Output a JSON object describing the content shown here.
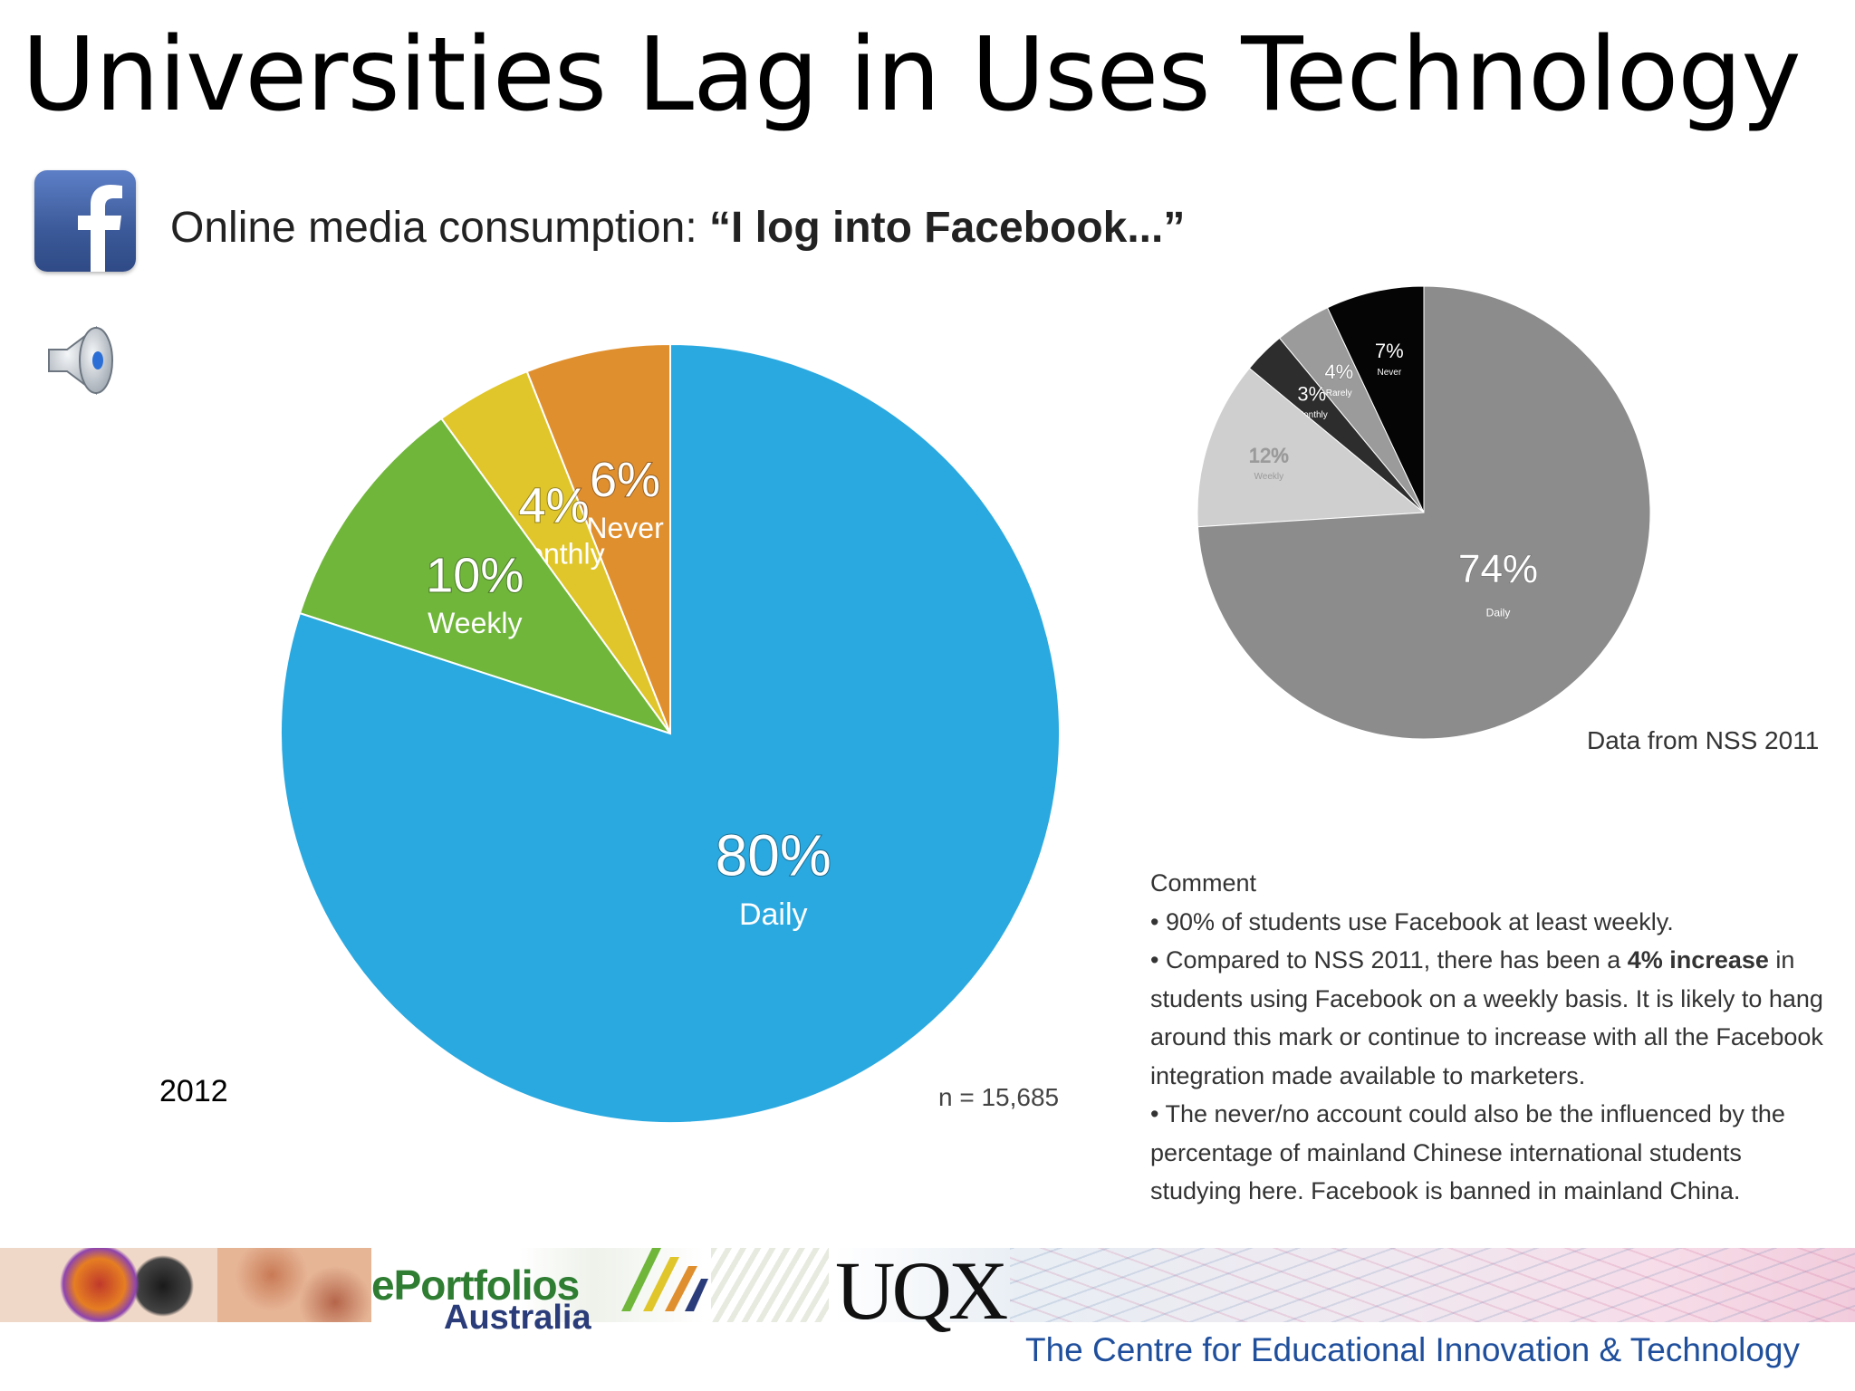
{
  "slide": {
    "title": "Universities Lag in Uses Technology",
    "subtitle_prefix": "Online media consumption: ",
    "subtitle_quote": "“I log into Facebook...”",
    "year_label": "2012",
    "sample_note": "n = 15,685",
    "nss_note": "Data from NSS 2011"
  },
  "comment": {
    "heading": "Comment",
    "b1": "• 90% of students use Facebook at least weekly.",
    "b2_pre": "• Compared to NSS 2011, there has been a ",
    "b2_bold": "4% increase",
    "b2_post": " in students using Facebook on a weekly basis. It is likely to hang around this mark or continue to increase with all the Facebook integration made available to marketers.",
    "b3": "• The never/no account could also be the influenced by the percentage of mainland Chinese international students studying here. Facebook is banned in mainland China."
  },
  "footer": {
    "eportfolios": "ePortfolios",
    "australia": "Australia",
    "uqx": "UQX",
    "ceit": "The Centre for Educational Innovation & Technology"
  },
  "icons": [
    "facebook-icon",
    "speaker-icon"
  ],
  "chart_data": [
    {
      "type": "pie",
      "series": [
        {
          "label": "Daily",
          "pct_text": "80%",
          "value": 80,
          "color": "#2aa9e0"
        },
        {
          "label": "Weekly",
          "pct_text": "10%",
          "value": 10,
          "color": "#6fb63a"
        },
        {
          "label": "Monthly",
          "pct_text": "4%",
          "value": 4,
          "color": "#e0c62a"
        },
        {
          "label": "Never",
          "pct_text": "6%",
          "value": 6,
          "color": "#e08f2e"
        }
      ]
    },
    {
      "type": "pie",
      "series": [
        {
          "label": "Daily",
          "pct_text": "74%",
          "value": 74,
          "color": "#8c8c8c"
        },
        {
          "label": "Weekly",
          "pct_text": "12%",
          "value": 12,
          "color": "#cfcfcf"
        },
        {
          "label": "Monthly",
          "pct_text": "3%",
          "value": 3,
          "color": "#2d2d2d"
        },
        {
          "label": "Rarely",
          "pct_text": "4%",
          "value": 4,
          "color": "#9b9b9b"
        },
        {
          "label": "Never",
          "pct_text": "7%",
          "value": 7,
          "color": "#050505"
        }
      ]
    }
  ]
}
